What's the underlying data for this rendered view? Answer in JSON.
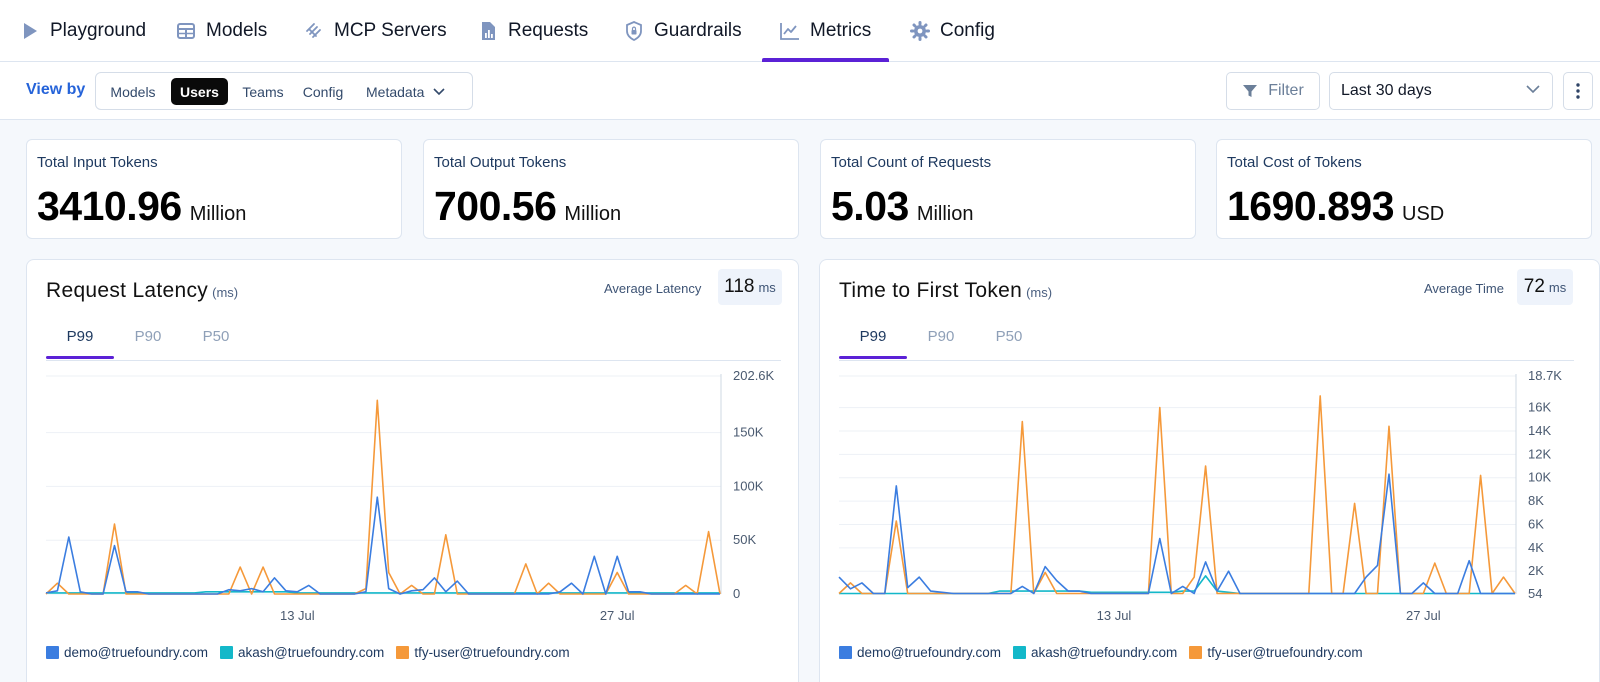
{
  "colors": {
    "accent": "#5b21d6",
    "link": "#2563d9",
    "series_demo": "#3b7de0",
    "series_akash": "#13b8c9",
    "series_tfy": "#f5993a",
    "nav_icon": "#7f95bf"
  },
  "nav": {
    "items": [
      {
        "label": "Playground",
        "icon": "play-icon"
      },
      {
        "label": "Models",
        "icon": "table-icon"
      },
      {
        "label": "MCP Servers",
        "icon": "mcp-icon"
      },
      {
        "label": "Requests",
        "icon": "document-chart-icon"
      },
      {
        "label": "Guardrails",
        "icon": "shield-lock-icon"
      },
      {
        "label": "Metrics",
        "icon": "line-chart-icon"
      },
      {
        "label": "Config",
        "icon": "gear-icon"
      }
    ],
    "active": "Metrics"
  },
  "toolbar": {
    "view_by_label": "View by",
    "segments": [
      "Models",
      "Users",
      "Teams",
      "Config",
      "Metadata"
    ],
    "active_segment": "Users",
    "filter_label": "Filter",
    "time_range": "Last 30 days"
  },
  "stats": [
    {
      "label": "Total Input Tokens",
      "value": "3410.96",
      "unit": "Million"
    },
    {
      "label": "Total Output Tokens",
      "value": "700.56",
      "unit": "Million"
    },
    {
      "label": "Total Count of Requests",
      "value": "5.03",
      "unit": "Million"
    },
    {
      "label": "Total Cost of Tokens",
      "value": "1690.893",
      "unit": "USD"
    }
  ],
  "panels": [
    {
      "title": "Request Latency",
      "title_unit": "(ms)",
      "avg_label": "Average Latency",
      "avg_value": "118",
      "avg_unit": "ms",
      "tabs": [
        "P99",
        "P90",
        "P50"
      ],
      "active_tab": "P99"
    },
    {
      "title": "Time to First Token",
      "title_unit": "(ms)",
      "avg_label": "Average Time",
      "avg_value": "72",
      "avg_unit": "ms",
      "tabs": [
        "P99",
        "P90",
        "P50"
      ],
      "active_tab": "P99"
    }
  ],
  "chart_data": [
    {
      "type": "line",
      "title": "Request Latency",
      "ylabel": "ms",
      "ylim": [
        0,
        202600
      ],
      "y_ticks": [
        0,
        50000,
        100000,
        150000,
        202600
      ],
      "y_tick_labels": [
        "0",
        "50K",
        "100K",
        "150K",
        "202.6K"
      ],
      "x_tick_labels": [
        {
          "label": "13 Jul",
          "index": 22
        },
        {
          "label": "27 Jul",
          "index": 50
        }
      ],
      "x_count": 60,
      "series": [
        {
          "name": "demo@truefoundry.com",
          "values": [
            1000,
            3000,
            53000,
            2000,
            0,
            0,
            45000,
            2000,
            2000,
            0,
            0,
            0,
            0,
            0,
            0,
            0,
            4000,
            3000,
            5000,
            2000,
            15000,
            3000,
            2000,
            8000,
            0,
            0,
            0,
            0,
            2000,
            90000,
            5000,
            0,
            3000,
            4000,
            15000,
            2000,
            12000,
            0,
            0,
            0,
            0,
            0,
            0,
            0,
            0,
            2000,
            10000,
            0,
            35000,
            0,
            35000,
            2000,
            2000,
            0,
            0,
            0,
            0,
            0,
            0,
            0
          ]
        },
        {
          "name": "akash@truefoundry.com",
          "values": [
            1000,
            1000,
            1000,
            1000,
            1000,
            1000,
            1000,
            1000,
            1000,
            1000,
            1000,
            1000,
            1000,
            1000,
            2000,
            2000,
            2000,
            2000,
            2000,
            2000,
            2000,
            2000,
            1000,
            1000,
            1000,
            1000,
            1000,
            1000,
            1000,
            1000,
            1000,
            1000,
            1000,
            1000,
            1000,
            1000,
            1000,
            1000,
            1000,
            1000,
            1000,
            1000,
            1000,
            1000,
            1000,
            1000,
            1000,
            1000,
            1000,
            1000,
            1000,
            1000,
            1000,
            1000,
            1000,
            1000,
            1000,
            1000,
            1000,
            1000
          ]
        },
        {
          "name": "tfy-user@truefoundry.com",
          "values": [
            0,
            10000,
            0,
            0,
            0,
            0,
            65000,
            0,
            0,
            0,
            0,
            0,
            0,
            0,
            0,
            0,
            0,
            25000,
            0,
            25000,
            0,
            0,
            0,
            0,
            0,
            0,
            0,
            0,
            5000,
            180000,
            20000,
            0,
            8000,
            0,
            0,
            55000,
            0,
            0,
            0,
            0,
            0,
            0,
            28000,
            0,
            10000,
            0,
            0,
            0,
            0,
            0,
            20000,
            0,
            0,
            0,
            0,
            0,
            8000,
            0,
            58000,
            0
          ]
        }
      ]
    },
    {
      "type": "line",
      "title": "Time to First Token",
      "ylabel": "ms",
      "ylim": [
        54,
        18700
      ],
      "y_ticks": [
        54,
        2000,
        4000,
        6000,
        8000,
        10000,
        12000,
        14000,
        16000,
        18700
      ],
      "y_tick_labels": [
        "54",
        "2K",
        "4K",
        "6K",
        "8K",
        "10K",
        "12K",
        "14K",
        "16K",
        "18.7K"
      ],
      "x_tick_labels": [
        {
          "label": "13 Jul",
          "index": 24
        },
        {
          "label": "27 Jul",
          "index": 51
        }
      ],
      "x_count": 60,
      "series": [
        {
          "name": "demo@truefoundry.com",
          "values": [
            1500,
            500,
            1000,
            100,
            100,
            9300,
            600,
            1500,
            300,
            200,
            100,
            100,
            100,
            100,
            100,
            100,
            700,
            100,
            2400,
            1200,
            300,
            300,
            100,
            100,
            100,
            100,
            100,
            100,
            4800,
            100,
            700,
            100,
            2800,
            300,
            2000,
            100,
            100,
            100,
            100,
            100,
            100,
            100,
            100,
            100,
            100,
            100,
            1500,
            2500,
            10300,
            100,
            100,
            1000,
            100,
            100,
            100,
            2900,
            100,
            100,
            100,
            100
          ]
        },
        {
          "name": "akash@truefoundry.com",
          "values": [
            100,
            100,
            100,
            100,
            100,
            100,
            100,
            100,
            100,
            100,
            100,
            100,
            100,
            100,
            300,
            300,
            300,
            300,
            300,
            300,
            300,
            300,
            200,
            200,
            200,
            200,
            200,
            200,
            200,
            200,
            300,
            300,
            1600,
            300,
            200,
            100,
            100,
            100,
            100,
            100,
            100,
            100,
            100,
            100,
            100,
            100,
            100,
            100,
            100,
            100,
            100,
            100,
            100,
            100,
            100,
            100,
            100,
            100,
            100,
            100
          ]
        },
        {
          "name": "tfy-user@truefoundry.com",
          "values": [
            100,
            1000,
            100,
            100,
            100,
            6300,
            100,
            100,
            100,
            100,
            100,
            100,
            100,
            100,
            100,
            100,
            14800,
            100,
            1900,
            100,
            100,
            100,
            100,
            100,
            100,
            100,
            100,
            100,
            16000,
            100,
            100,
            1500,
            11000,
            100,
            100,
            100,
            100,
            100,
            100,
            100,
            100,
            100,
            17000,
            100,
            100,
            7800,
            100,
            100,
            14400,
            100,
            100,
            100,
            2700,
            100,
            100,
            100,
            10200,
            100,
            1500,
            100
          ]
        }
      ]
    }
  ]
}
